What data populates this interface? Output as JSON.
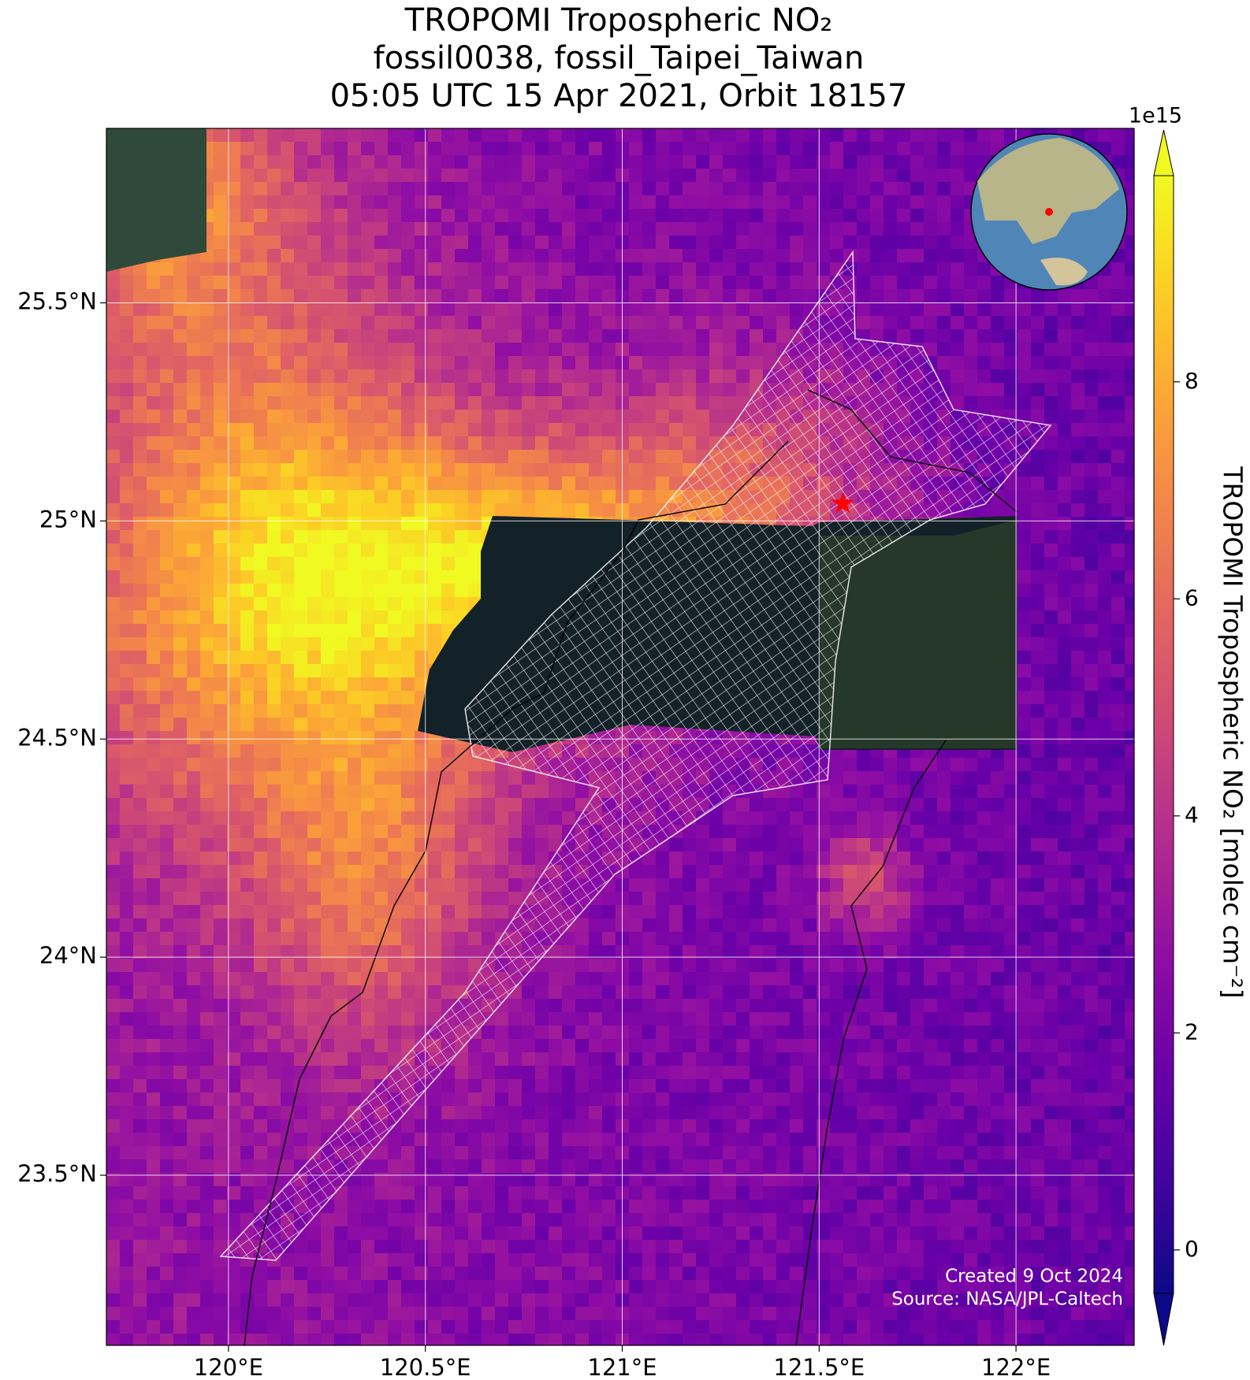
{
  "chart_data": {
    "type": "map",
    "title": [
      "TROPOMI Tropospheric NO₂",
      "fossil0038, fossil_Taipei_Taiwan",
      "05:05 UTC 15 Apr 2021, Orbit 18157"
    ],
    "xlim": [
      119.69,
      122.3
    ],
    "ylim": [
      23.11,
      25.9
    ],
    "xticks": [
      {
        "value": 120,
        "label": "120°E"
      },
      {
        "value": 120.5,
        "label": "120.5°E"
      },
      {
        "value": 121,
        "label": "121°E"
      },
      {
        "value": 121.5,
        "label": "121.5°E"
      },
      {
        "value": 122,
        "label": "122°E"
      }
    ],
    "yticks": [
      {
        "value": 23.5,
        "label": "23.5°N"
      },
      {
        "value": 24,
        "label": "24°N"
      },
      {
        "value": 24.5,
        "label": "24.5°N"
      },
      {
        "value": 25,
        "label": "25°N"
      },
      {
        "value": 25.5,
        "label": "25.5°N"
      }
    ],
    "grid": true,
    "colorbar": {
      "label": "TROPOMI Tropospheric NO₂ [molec cm⁻²]",
      "exponent": "1e15",
      "lim": [
        -0.4,
        9.9
      ],
      "ticks": [
        0,
        2,
        4,
        6,
        8
      ],
      "colormap": "plasma"
    },
    "marker": {
      "lon": 121.56,
      "lat": 25.04,
      "color": "#ff0000"
    },
    "annotations": [
      "Created 9 Oct 2024",
      "Source: NASA/JPL-Caltech"
    ]
  }
}
